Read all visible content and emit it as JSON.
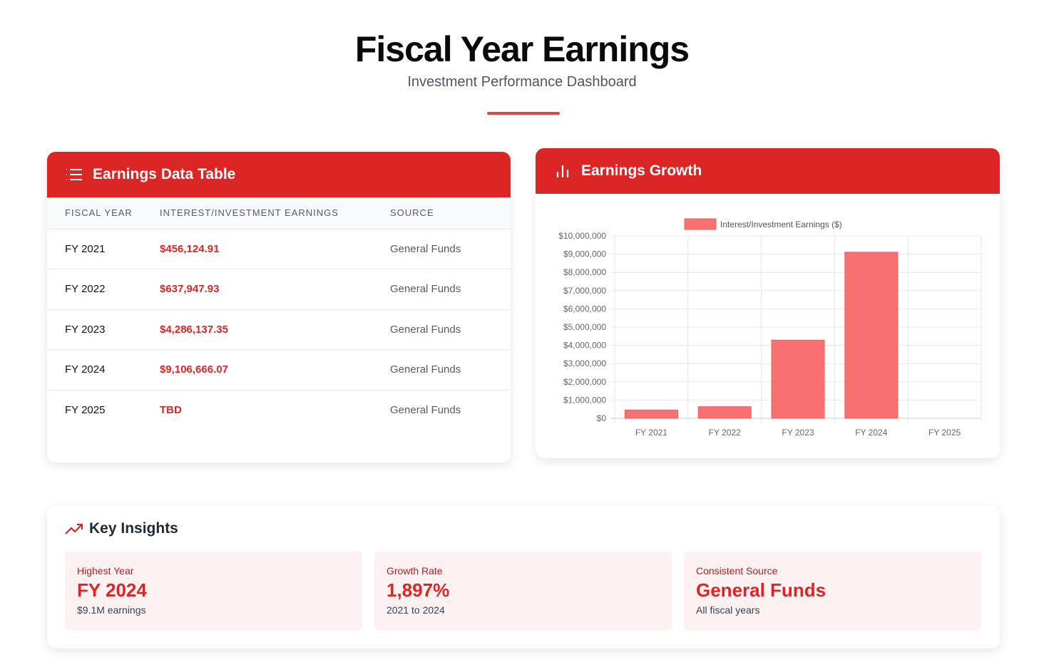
{
  "header": {
    "title": "Fiscal Year Earnings",
    "subtitle": "Investment Performance Dashboard"
  },
  "table_card": {
    "title": "Earnings Data Table",
    "icon": "list-icon",
    "columns": [
      "FISCAL YEAR",
      "INTEREST/INVESTMENT EARNINGS",
      "SOURCE"
    ],
    "rows": [
      [
        "FY 2021",
        "$456,124.91",
        "General Funds"
      ],
      [
        "FY 2022",
        "$637,947.93",
        "General Funds"
      ],
      [
        "FY 2023",
        "$4,286,137.35",
        "General Funds"
      ],
      [
        "FY 2024",
        "$9,106,666.07",
        "General Funds"
      ],
      [
        "FY 2025",
        "TBD",
        "General Funds"
      ]
    ]
  },
  "chart_card": {
    "title": "Earnings Growth",
    "icon": "bar-chart-icon"
  },
  "chart_data": {
    "type": "bar",
    "title": "",
    "categories": [
      "FY 2021",
      "FY 2022",
      "FY 2023",
      "FY 2024",
      "FY 2025"
    ],
    "series": [
      {
        "name": "Interest/Investment Earnings ($)",
        "values": [
          456124.91,
          637947.93,
          4286137.35,
          9106666.07,
          null
        ],
        "color": "#f87171"
      }
    ],
    "ylim": [
      0,
      10000000
    ],
    "yticks": [
      "$0",
      "$1,000,000",
      "$2,000,000",
      "$3,000,000",
      "$4,000,000",
      "$5,000,000",
      "$6,000,000",
      "$7,000,000",
      "$8,000,000",
      "$9,000,000",
      "$10,000,000"
    ],
    "grid": true,
    "legend": "top-center",
    "xlabel": "",
    "ylabel": ""
  },
  "insights": {
    "title": "Key Insights",
    "icon": "trending-up-icon",
    "items": [
      {
        "label": "Highest Year",
        "value": "FY 2024",
        "sub": "$9.1M earnings"
      },
      {
        "label": "Growth Rate",
        "value": "1,897%",
        "sub": "2021 to 2024"
      },
      {
        "label": "Consistent Source",
        "value": "General Funds",
        "sub": "All fiscal years"
      }
    ]
  },
  "colors": {
    "accent": "#dc2626",
    "bar": "#f87171"
  }
}
